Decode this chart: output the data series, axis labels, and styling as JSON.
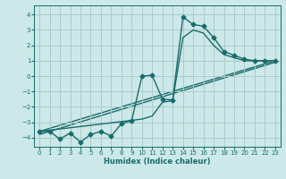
{
  "xlabel": "Humidex (Indice chaleur)",
  "bg_color": "#cce8e8",
  "grid_color": "#aacccc",
  "line_color": "#1a6b6b",
  "xlim": [
    -0.5,
    23.5
  ],
  "ylim": [
    -4.6,
    4.6
  ],
  "xticks": [
    0,
    1,
    2,
    3,
    4,
    5,
    6,
    7,
    8,
    9,
    10,
    11,
    12,
    13,
    14,
    15,
    16,
    17,
    18,
    19,
    20,
    21,
    22,
    23
  ],
  "yticks": [
    -4,
    -3,
    -2,
    -1,
    0,
    1,
    2,
    3,
    4
  ],
  "line1_x": [
    0,
    1,
    2,
    3,
    4,
    5,
    6,
    7,
    8,
    9,
    10,
    11,
    12,
    13,
    14,
    15,
    16,
    17,
    18,
    19,
    20,
    21,
    22,
    23
  ],
  "line1_y": [
    -3.6,
    -3.6,
    -4.1,
    -3.7,
    -4.3,
    -3.8,
    -3.6,
    -3.9,
    -3.1,
    -2.9,
    0.0,
    0.05,
    -1.5,
    -1.55,
    3.85,
    3.35,
    3.25,
    2.5,
    1.6,
    1.35,
    1.1,
    1.0,
    1.0,
    1.0
  ],
  "line2_x": [
    0,
    10,
    11,
    12,
    13,
    14,
    15,
    16,
    17,
    18,
    19,
    20,
    21,
    22,
    23
  ],
  "line2_y": [
    -3.6,
    -2.8,
    -2.6,
    -1.7,
    -1.6,
    2.5,
    3.0,
    2.8,
    2.0,
    1.4,
    1.2,
    1.0,
    1.0,
    1.0,
    1.0
  ],
  "line3_x": [
    0,
    23
  ],
  "line3_y": [
    -3.6,
    1.0
  ],
  "line4_x": [
    0,
    23
  ],
  "line4_y": [
    -3.8,
    0.9
  ],
  "marker": "D",
  "markersize": 2.5,
  "linewidth": 1.0
}
